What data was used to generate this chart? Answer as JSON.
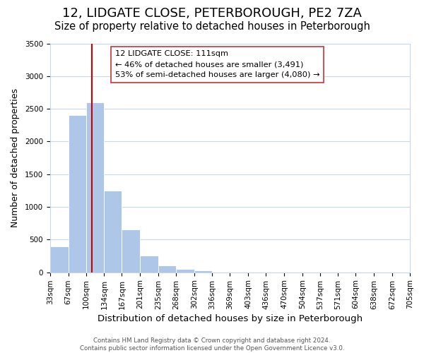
{
  "title": "12, LIDGATE CLOSE, PETERBOROUGH, PE2 7ZA",
  "subtitle": "Size of property relative to detached houses in Peterborough",
  "xlabel": "Distribution of detached houses by size in Peterborough",
  "ylabel": "Number of detached properties",
  "bar_values": [
    400,
    2400,
    2600,
    1250,
    650,
    260,
    100,
    50,
    30,
    0,
    0,
    0,
    0,
    0,
    0,
    0,
    0,
    0,
    0,
    0
  ],
  "bar_color": "#aec6e8",
  "vline_x": 111,
  "vline_color": "#cc0000",
  "annotation_box_text": "12 LIDGATE CLOSE: 111sqm\n← 46% of detached houses are smaller (3,491)\n53% of semi-detached houses are larger (4,080) →",
  "ylim": [
    0,
    3500
  ],
  "yticks": [
    0,
    500,
    1000,
    1500,
    2000,
    2500,
    3000,
    3500
  ],
  "bin_edges": [
    33,
    67,
    100,
    134,
    167,
    201,
    235,
    268,
    302,
    336,
    369,
    403,
    436,
    470,
    504,
    537,
    571,
    604,
    638,
    672,
    705
  ],
  "footer_line1": "Contains HM Land Registry data © Crown copyright and database right 2024.",
  "footer_line2": "Contains public sector information licensed under the Open Government Licence v3.0.",
  "background_color": "#ffffff",
  "grid_color": "#c8d8e8",
  "title_fontsize": 13,
  "subtitle_fontsize": 10.5,
  "xlabel_fontsize": 9.5,
  "ylabel_fontsize": 9,
  "tick_fontsize": 7.5
}
